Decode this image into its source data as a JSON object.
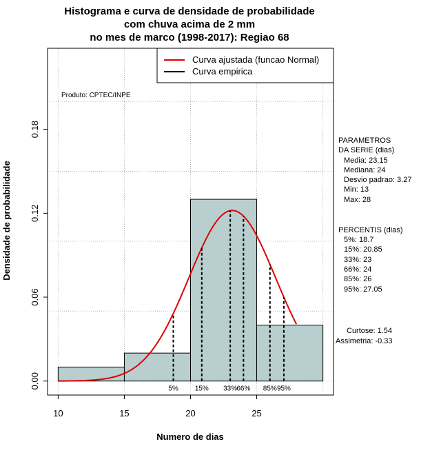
{
  "chart_data": {
    "type": "histogram",
    "title_lines": [
      "Histograma e curva de densidade de probabilidade",
      "com chuva acima de 2 mm",
      "no mes de marco (1998-2017): Regiao 68"
    ],
    "xlabel": "Numero de dias",
    "ylabel": "Densidade de probabilidade",
    "xlim": [
      9.2,
      30.8
    ],
    "ylim": [
      -0.01,
      0.238
    ],
    "x_ticks": [
      10,
      15,
      20,
      25
    ],
    "y_ticks": [
      0.0,
      0.06,
      0.12,
      0.18
    ],
    "y_tick_labels": [
      "0.00",
      "0.06",
      "0.12",
      "0.18"
    ],
    "grid_x": [
      10,
      15,
      20,
      25,
      30
    ],
    "grid_y": [
      0.0,
      0.05,
      0.1,
      0.15,
      0.2
    ],
    "grid": true,
    "bins": [
      {
        "from": 10,
        "to": 15,
        "density": 0.01
      },
      {
        "from": 15,
        "to": 20,
        "density": 0.02
      },
      {
        "from": 20,
        "to": 25,
        "density": 0.13
      },
      {
        "from": 25,
        "to": 30,
        "density": 0.04
      }
    ],
    "bar_color": "#b9cfcf",
    "curve": {
      "name": "Curva ajustada (funcao Normal)",
      "mean": 23.15,
      "sd": 3.27,
      "x_range": [
        10,
        28
      ],
      "color": "#e00000"
    },
    "empirical_legend": "Curva empirica",
    "legend_placement": "top-right",
    "percentiles": [
      {
        "label": "5%",
        "value": 18.7
      },
      {
        "label": "15%",
        "value": 20.85
      },
      {
        "label": "33%",
        "value": 23
      },
      {
        "label": "66%",
        "value": 24
      },
      {
        "label": "85%",
        "value": 26
      },
      {
        "label": "95%",
        "value": 27.05
      }
    ],
    "product_label": "Produto: CPTEC/INPE",
    "parameters": {
      "header": [
        "PARAMETROS",
        "DA SERIE (dias)"
      ],
      "lines": [
        "Media: 23.15",
        "Mediana: 24",
        "Desvio padrao: 3.27",
        "Min: 13",
        "Max: 28"
      ]
    },
    "percentis_block": {
      "header": "PERCENTIS (dias)",
      "lines": [
        "5%: 18.7",
        "15%: 20.85",
        "33%: 23",
        "66%: 24",
        "85%: 26",
        "95%: 27.05"
      ]
    },
    "shape": {
      "lines": [
        "Curtose: 1.54",
        "Assimetria: -0.33"
      ]
    }
  }
}
